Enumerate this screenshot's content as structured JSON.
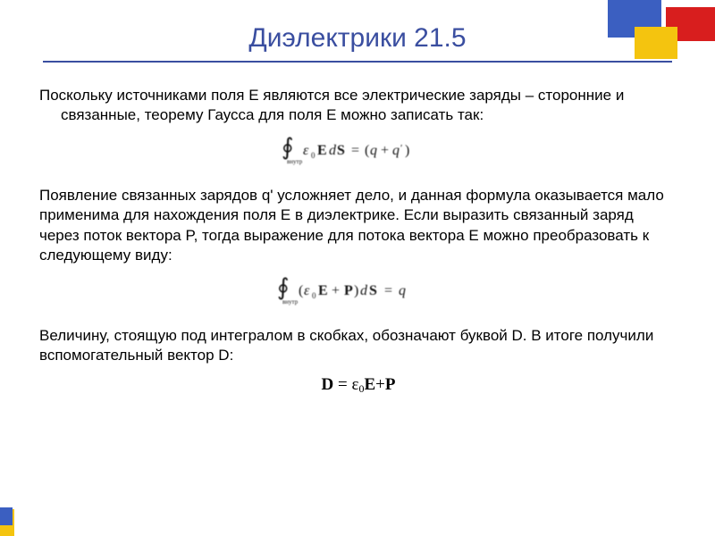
{
  "title": "Диэлектрики 21.5",
  "colors": {
    "title_color": "#3a4ea0",
    "underline_color": "#3a4ea0",
    "text_color": "#000000",
    "background": "#ffffff",
    "deco_blue": "#3b5fc1",
    "deco_red": "#d81e1e",
    "deco_yellow": "#f4c40f"
  },
  "typography": {
    "title_fontsize": 30,
    "body_fontsize": 17,
    "body_line_height": 1.32,
    "formula_font": "Times New Roman"
  },
  "para1": "Поскольку источниками поля E являются все электрические заряды – сторонние и связанные, теорему Гаусса для поля E можно записать так:",
  "formula1_tex": "\\oint \\varepsilon_0 \\mathbf{E} d\\mathbf{S} = (q + q')",
  "para2": "Появление связанных зарядов q' усложняет дело, и данная формула оказывается мало применима для нахождения поля E в диэлектрике. Если выразить связанный заряд через поток вектора P, тогда выражение для потока вектора E можно преобразовать к следующему виду:",
  "formula2_tex": "\\oint (\\varepsilon_0 \\mathbf{E} + \\mathbf{P}) d\\mathbf{S} = q",
  "para3": "Величину, стоящую под интегралом в скобках, обозначают буквой D. В итоге получили вспомогательный вектор D:",
  "formula3": {
    "D": "D",
    "eq": " = ",
    "eps": "ε",
    "sub0": "0",
    "E": "E",
    "plus": "+",
    "P": "P"
  }
}
